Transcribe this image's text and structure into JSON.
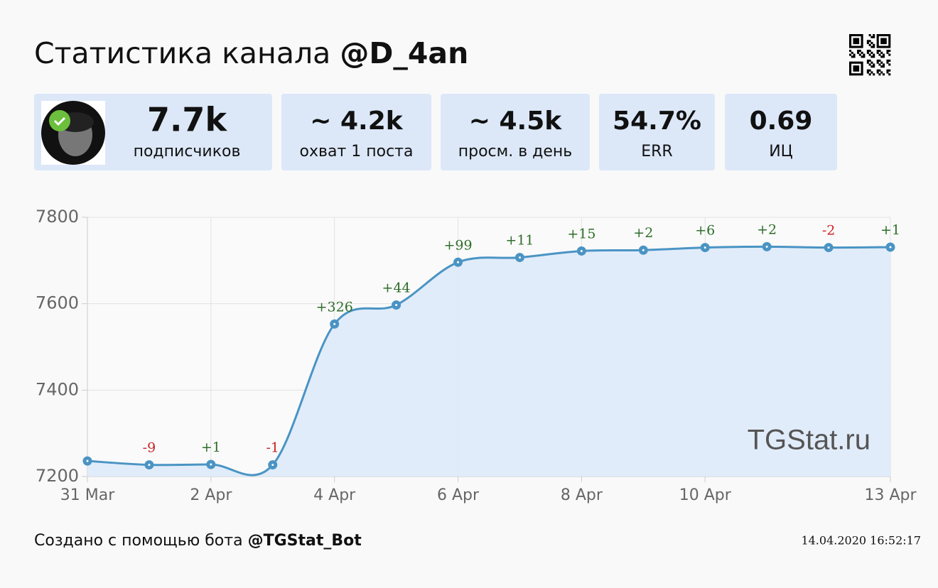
{
  "header": {
    "title": "Статистика канала",
    "channel": "@D_4an"
  },
  "stats": [
    {
      "value": "7.7k",
      "label": "подписчиков"
    },
    {
      "value": "~ 4.2k",
      "label": "охват 1 поста"
    },
    {
      "value": "~ 4.5k",
      "label": "просм. в день"
    },
    {
      "value": "54.7%",
      "label": "ERR"
    },
    {
      "value": "0.69",
      "label": "ИЦ"
    }
  ],
  "chart_data": {
    "type": "line",
    "categories": [
      "31 Mar",
      null,
      "2 Apr",
      null,
      "4 Apr",
      null,
      "6 Apr",
      null,
      "8 Apr",
      null,
      "10 Apr",
      null,
      null,
      "13 Apr"
    ],
    "values": [
      7236,
      7227,
      7228,
      7227,
      7553,
      7597,
      7696,
      7707,
      7722,
      7724,
      7730,
      7732,
      7730,
      7731
    ],
    "annotations": [
      null,
      "-9",
      "+1",
      "-1",
      "+326",
      "+44",
      "+99",
      "+11",
      "+15",
      "+2",
      "+6",
      "+2",
      "-2",
      "+1"
    ],
    "color": "#4a94c4",
    "area_color": "#deeafa",
    "ylim": [
      7200,
      7800
    ],
    "yticks": [
      7200,
      7400,
      7600,
      7800
    ],
    "grid": true,
    "watermark": "TGStat.ru"
  },
  "footer": {
    "text": "Создано с помощью бота",
    "bot": "@TGStat_Bot",
    "timestamp": "14.04.2020 16:52:17"
  }
}
